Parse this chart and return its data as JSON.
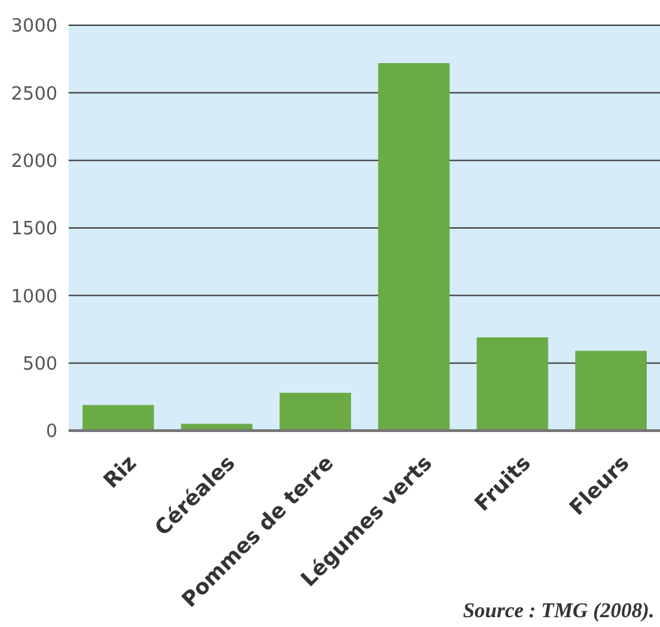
{
  "chart_data": {
    "type": "bar",
    "categories": [
      "Riz",
      "Céréales",
      "Pommes de terre",
      "Légumes verts",
      "Fruits",
      "Fleurs"
    ],
    "values": [
      190,
      50,
      280,
      2720,
      690,
      590
    ],
    "color": "#6aab46",
    "ylim": [
      0,
      3000
    ],
    "yticks": [
      0,
      500,
      1000,
      1500,
      2000,
      2500,
      3000
    ],
    "grid": "y",
    "annotations": [
      "Source : TMG (2008)."
    ]
  }
}
